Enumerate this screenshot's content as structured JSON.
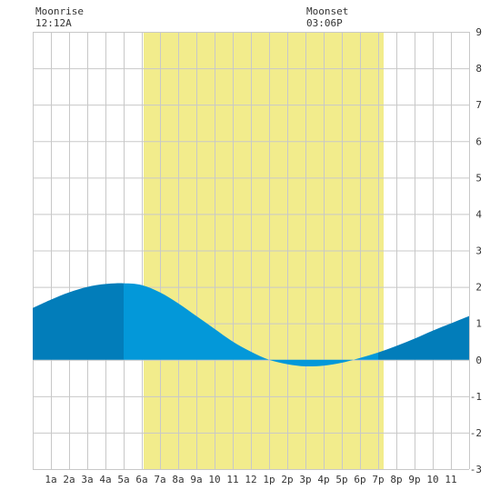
{
  "header": {
    "moonrise_label": "Moonrise",
    "moonrise_time": "12:12A",
    "moonset_label": "Moonset",
    "moonset_time": "03:06P"
  },
  "colors": {
    "daylight": "#f2ec8c",
    "grid": "#c8c8c8",
    "tide_day": "#0398d9",
    "tide_night": "#027dba",
    "background": "#ffffff"
  },
  "chart_data": {
    "type": "area",
    "title": "",
    "xlabel": "",
    "ylabel": "",
    "x_ticks": [
      "1a",
      "2a",
      "3a",
      "4a",
      "5a",
      "6a",
      "7a",
      "8a",
      "9a",
      "10",
      "11",
      "12",
      "1p",
      "2p",
      "3p",
      "4p",
      "5p",
      "6p",
      "7p",
      "8p",
      "9p",
      "10",
      "11"
    ],
    "y_ticks": [
      9,
      8,
      7,
      6,
      5,
      4,
      3,
      2,
      1,
      0,
      -1,
      -2,
      -3
    ],
    "xlim_hours": [
      0,
      24
    ],
    "ylim": [
      -3,
      9
    ],
    "grid": true,
    "daylight_hours": [
      6.1,
      19.3
    ],
    "series": [
      {
        "hours": [
          0,
          1,
          2,
          3,
          4,
          5,
          6,
          7,
          8,
          9,
          10,
          11,
          12,
          13,
          14,
          15,
          16,
          17,
          18,
          19,
          20,
          21,
          22,
          23,
          24
        ],
        "heights": [
          1.42,
          1.65,
          1.85,
          2.0,
          2.08,
          2.1,
          2.05,
          1.85,
          1.55,
          1.2,
          0.85,
          0.5,
          0.22,
          0.0,
          -0.12,
          -0.18,
          -0.16,
          -0.08,
          0.05,
          0.2,
          0.38,
          0.58,
          0.8,
          1.0,
          1.2
        ]
      }
    ]
  }
}
